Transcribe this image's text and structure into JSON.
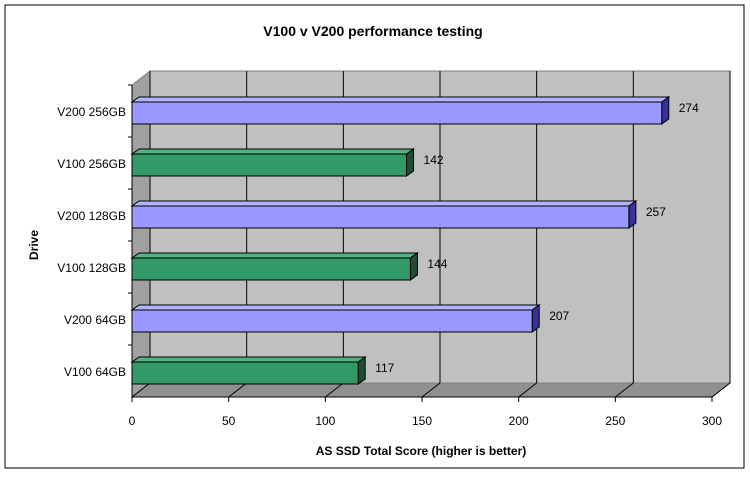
{
  "chart_data": {
    "type": "bar",
    "orientation": "horizontal",
    "title": "V100 v V200 performance testing",
    "xlabel": "AS SSD Total Score (higher is better)",
    "ylabel": "Drive",
    "categories": [
      "V200 256GB",
      "V100 256GB",
      "V200 128GB",
      "V100 128GB",
      "V200 64GB",
      "V100 64GB"
    ],
    "values": [
      274,
      142,
      257,
      144,
      207,
      117
    ],
    "xlim": [
      0,
      300
    ],
    "xticks": [
      "0",
      "50",
      "100",
      "150",
      "200",
      "250",
      "300"
    ],
    "grid": true,
    "legend": "none",
    "colors": {
      "V200": "#9999FF",
      "V100": "#339966",
      "plot_background": "#C0C0C0",
      "grid": "#000000"
    }
  }
}
